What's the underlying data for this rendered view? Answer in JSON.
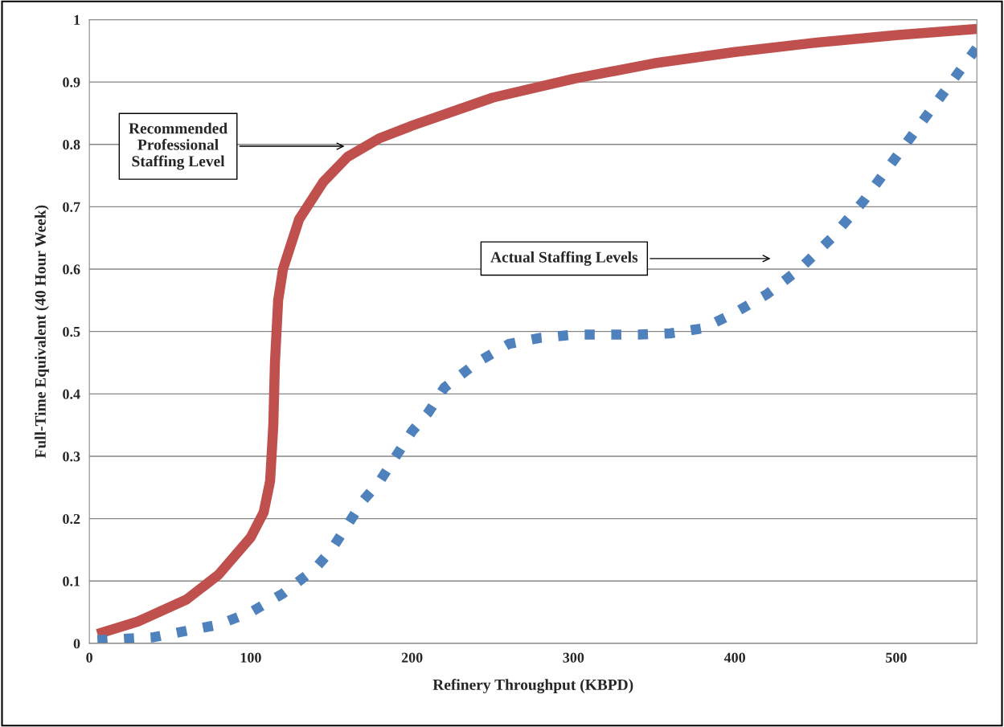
{
  "chart_data": {
    "type": "line",
    "xlabel": "Refinery Throughput (KBPD)",
    "ylabel": "Full-Time Equivalent (40 Hour Week)",
    "xlim": [
      0,
      550
    ],
    "xticks": [
      0,
      100,
      200,
      300,
      400,
      500
    ],
    "ylim": [
      0,
      1
    ],
    "yticks": [
      0,
      0.1,
      0.2,
      0.3,
      0.4,
      0.5,
      0.6,
      0.7,
      0.8,
      0.9,
      1
    ],
    "grid": "y",
    "legend": false,
    "marker": "none",
    "series": [
      {
        "color": "#c0504d",
        "line_style": "solid",
        "x": [
          5,
          30,
          60,
          80,
          100,
          108,
          112,
          114,
          115,
          117,
          120,
          130,
          145,
          160,
          180,
          200,
          250,
          300,
          350,
          400,
          450,
          500,
          550
        ],
        "values": [
          0.015,
          0.035,
          0.07,
          0.11,
          0.17,
          0.21,
          0.26,
          0.35,
          0.45,
          0.55,
          0.6,
          0.68,
          0.74,
          0.78,
          0.81,
          0.83,
          0.875,
          0.905,
          0.93,
          0.948,
          0.963,
          0.975,
          0.985
        ]
      },
      {
        "color": "#4f81bd",
        "line_style": "dotted",
        "x": [
          5,
          40,
          60,
          80,
          100,
          120,
          140,
          150,
          160,
          170,
          180,
          190,
          200,
          210,
          220,
          240,
          260,
          280,
          300,
          340,
          360,
          380,
          400,
          420,
          440,
          460,
          480,
          500,
          520,
          540,
          550
        ],
        "values": [
          0.005,
          0.01,
          0.02,
          0.03,
          0.05,
          0.08,
          0.12,
          0.15,
          0.19,
          0.23,
          0.26,
          0.3,
          0.34,
          0.37,
          0.41,
          0.45,
          0.48,
          0.49,
          0.495,
          0.495,
          0.497,
          0.505,
          0.53,
          0.56,
          0.6,
          0.65,
          0.71,
          0.78,
          0.85,
          0.92,
          0.955
        ]
      }
    ],
    "annotations": [
      "Recommended\nProfessional\nStaffing Level",
      "Actual Staffing Levels"
    ]
  }
}
